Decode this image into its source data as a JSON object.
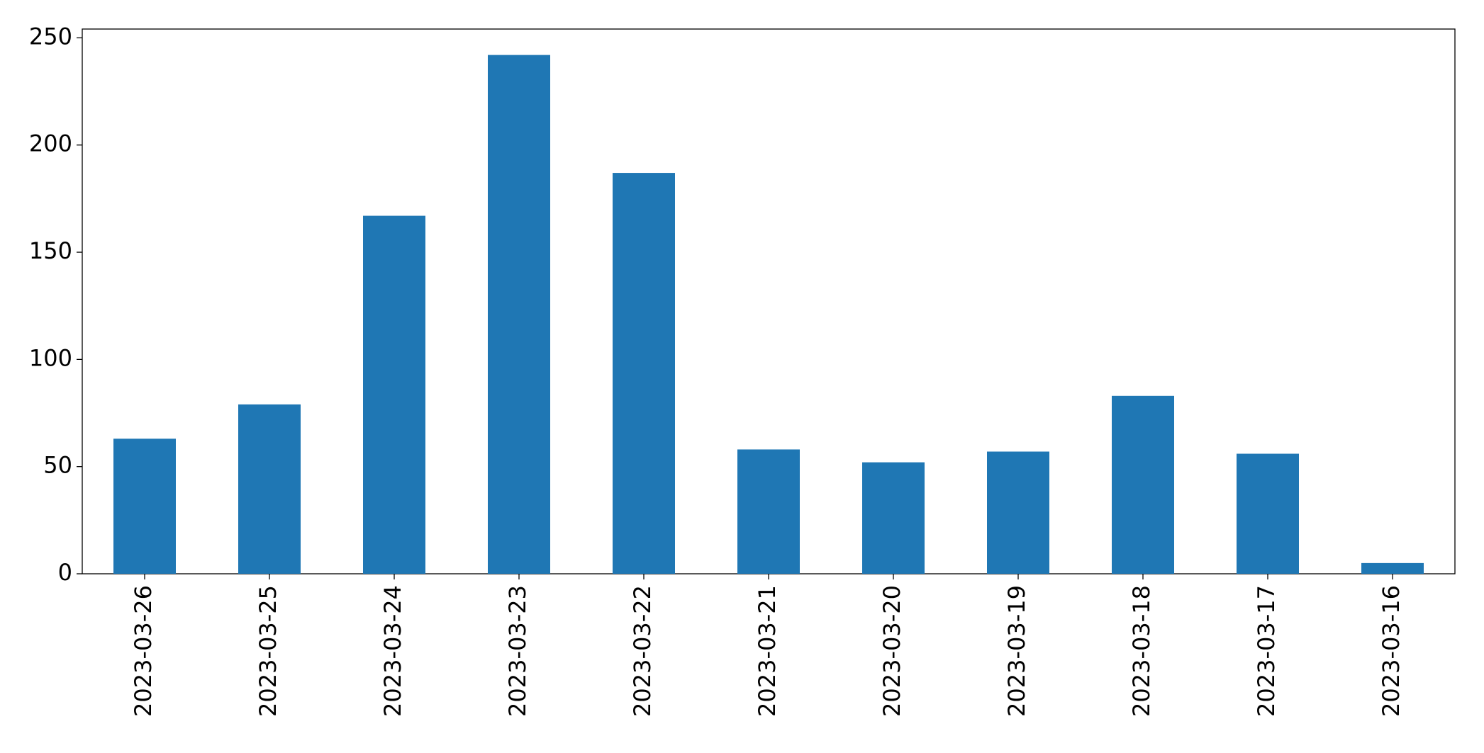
{
  "chart_data": {
    "type": "bar",
    "categories": [
      "2023-03-26",
      "2023-03-25",
      "2023-03-24",
      "2023-03-23",
      "2023-03-22",
      "2023-03-21",
      "2023-03-20",
      "2023-03-19",
      "2023-03-18",
      "2023-03-17",
      "2023-03-16"
    ],
    "values": [
      63,
      79,
      167,
      242,
      187,
      58,
      52,
      57,
      83,
      56,
      5
    ],
    "color": "#1f77b4",
    "ylim": [
      0,
      254.1
    ],
    "yticks": [
      0,
      50,
      100,
      150,
      200,
      250
    ],
    "grid": false
  }
}
